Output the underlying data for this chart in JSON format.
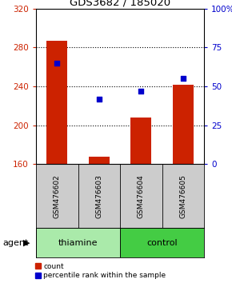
{
  "title": "GDS3682 / 185020",
  "samples": [
    "GSM476602",
    "GSM476603",
    "GSM476604",
    "GSM476605"
  ],
  "bar_values": [
    287,
    168,
    208,
    242
  ],
  "bar_bottom": 160,
  "bar_color": "#cc2200",
  "dot_values_pct": [
    65,
    42,
    47,
    55
  ],
  "dot_color": "#0000cc",
  "ylim_left": [
    160,
    320
  ],
  "ylim_right": [
    0,
    100
  ],
  "yticks_left": [
    160,
    200,
    240,
    280,
    320
  ],
  "yticks_right": [
    0,
    25,
    50,
    75,
    100
  ],
  "yticklabels_right": [
    "0",
    "25",
    "50",
    "75",
    "100%"
  ],
  "left_tick_color": "#cc2200",
  "right_tick_color": "#0000cc",
  "agent_groups": [
    {
      "label": "thiamine",
      "color": "#aaeaaa",
      "samples": [
        0,
        1
      ]
    },
    {
      "label": "control",
      "color": "#44cc44",
      "samples": [
        2,
        3
      ]
    }
  ],
  "agent_label": "agent",
  "legend_count_label": "count",
  "legend_pct_label": "percentile rank within the sample",
  "bg_color": "#ffffff",
  "plot_bg_color": "#ffffff",
  "sample_box_color": "#cccccc",
  "grid_dotted_ticks": [
    200,
    240,
    280
  ]
}
